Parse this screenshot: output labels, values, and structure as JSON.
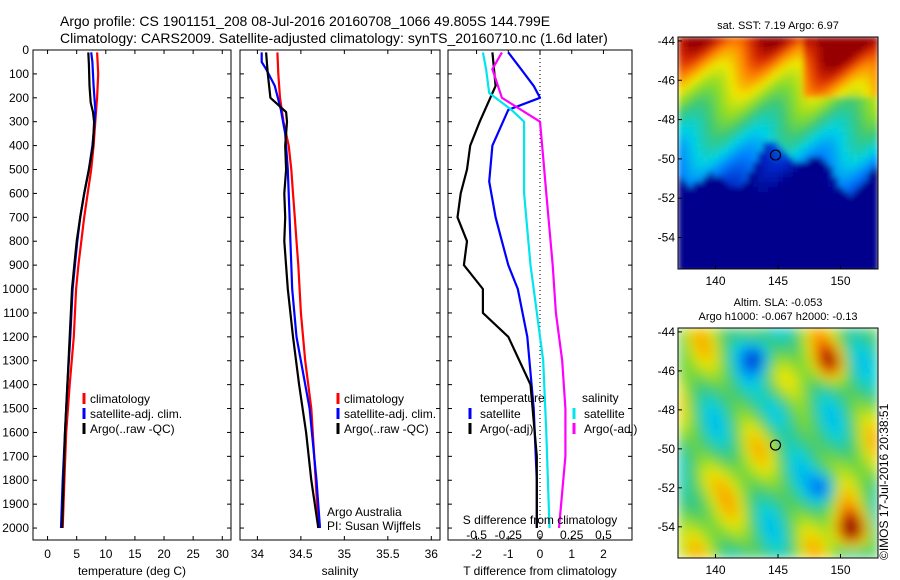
{
  "header": {
    "line1": "Argo profile: CS 1901151_208 08-Jul-2016 20160708_1066 49.805S 144.799E",
    "line2": "Climatology: CARS2009. Satellite-adjusted climatology: synTS_20160710.nc (1.6d later)"
  },
  "colors": {
    "climatology": "#ff0000",
    "satellite": "#0000ff",
    "argo": "#000000",
    "satellite_salinity": "#00e5ee",
    "argo_salinity": "#ff00ff"
  },
  "chart_data": [
    {
      "type": "line",
      "name": "temperature-profile",
      "xlabel": "temperature (deg C)",
      "xlim": [
        -2.5,
        31.5
      ],
      "xticks": [
        0,
        5,
        10,
        15,
        20,
        25,
        30
      ],
      "ylim": [
        0,
        2050
      ],
      "yticks": [
        0,
        100,
        200,
        300,
        400,
        500,
        600,
        700,
        800,
        900,
        1000,
        1100,
        1200,
        1300,
        1400,
        1500,
        1600,
        1700,
        1800,
        1900,
        2000
      ],
      "legend": {
        "position": "lower-center",
        "entries": [
          "climatology",
          "satellite-adj. clim.",
          "Argo(..raw -QC)"
        ]
      },
      "series": [
        {
          "name": "climatology",
          "color": "#ff0000",
          "x": [
            8.5,
            8.6,
            8.7,
            8.5,
            8.2,
            7.9,
            7.5,
            6.9,
            6.3,
            5.8,
            5.3,
            4.9,
            4.5,
            3.8,
            3.2,
            2.9,
            2.6
          ],
          "depth": [
            10,
            50,
            100,
            200,
            300,
            400,
            500,
            600,
            700,
            800,
            900,
            1000,
            1200,
            1400,
            1600,
            1800,
            2000
          ]
        },
        {
          "name": "satellite-adj. clim.",
          "color": "#0000ff",
          "x": [
            7.5,
            7.7,
            7.9,
            8.2,
            8.1,
            7.7,
            7.1,
            6.3,
            5.6,
            5.1,
            4.7,
            4.3,
            3.9,
            3.4,
            3.0,
            2.6,
            2.3
          ],
          "depth": [
            10,
            50,
            150,
            250,
            300,
            400,
            500,
            600,
            700,
            800,
            900,
            1000,
            1200,
            1400,
            1600,
            1800,
            2000
          ]
        },
        {
          "name": "Argo(..raw -QC)",
          "color": "#000000",
          "x": [
            7.0,
            7.1,
            7.2,
            7.4,
            7.8,
            8.0,
            7.8,
            7.1,
            6.3,
            5.6,
            5.0,
            4.6,
            4.2,
            3.8,
            3.4,
            3.0,
            2.5
          ],
          "depth": [
            10,
            60,
            150,
            220,
            260,
            300,
            400,
            500,
            600,
            700,
            800,
            900,
            1000,
            1200,
            1400,
            1600,
            2000
          ]
        }
      ]
    },
    {
      "type": "line",
      "name": "salinity-profile",
      "xlabel": "salinity",
      "xlim": [
        33.8,
        36.1
      ],
      "xticks": [
        34,
        34.5,
        35,
        35.5,
        36
      ],
      "ylim": [
        0,
        2050
      ],
      "legend": {
        "position": "lower-center",
        "entries": [
          "climatology",
          "satellite-adj. clim.",
          "Argo(..raw -QC)"
        ]
      },
      "annotation": [
        "Argo Australia",
        "PI: Susan Wijffels"
      ],
      "series": [
        {
          "name": "climatology",
          "color": "#ff0000",
          "x": [
            34.23,
            34.24,
            34.26,
            34.3,
            34.36,
            34.39,
            34.41,
            34.43,
            34.45,
            34.47,
            34.5,
            34.55,
            34.62,
            34.67,
            34.7
          ],
          "depth": [
            10,
            100,
            200,
            300,
            400,
            500,
            600,
            700,
            800,
            900,
            1100,
            1300,
            1500,
            1800,
            2000
          ]
        },
        {
          "name": "satellite-adj. clim.",
          "color": "#0000ff",
          "x": [
            34.05,
            34.05,
            34.1,
            34.2,
            34.27,
            34.32,
            34.35,
            34.36,
            34.37,
            34.38,
            34.4,
            34.45,
            34.6,
            34.68,
            34.72
          ],
          "depth": [
            10,
            50,
            80,
            150,
            250,
            350,
            500,
            600,
            700,
            800,
            1000,
            1200,
            1500,
            1800,
            2000
          ]
        },
        {
          "name": "Argo(..raw -QC)",
          "color": "#000000",
          "x": [
            34.1,
            34.12,
            34.15,
            34.33,
            34.34,
            34.32,
            34.33,
            34.31,
            34.32,
            34.31,
            34.35,
            34.41,
            34.48,
            34.56,
            34.62,
            34.7
          ],
          "depth": [
            10,
            100,
            200,
            260,
            300,
            400,
            500,
            600,
            700,
            800,
            1000,
            1200,
            1400,
            1600,
            1800,
            2000
          ]
        }
      ]
    },
    {
      "type": "line",
      "name": "difference-profile",
      "xlabel": "T difference from climatology",
      "xlabel_top": "S difference from climatology",
      "xlim": [
        -2.9,
        2.9
      ],
      "xticks": [
        -2,
        -1,
        0,
        1,
        2
      ],
      "sticks": [
        -0.5,
        -0.25,
        0,
        0.25,
        0.5
      ],
      "ylim": [
        0,
        2050
      ],
      "legend": {
        "position": "lower",
        "headers": [
          "temperature",
          "salinity"
        ],
        "entries": [
          "satellite",
          "Argo(-adj)",
          "satellite",
          "Argo(-adj)"
        ]
      },
      "series": [
        {
          "name": "T satellite",
          "color": "#0000ff",
          "x": [
            -1.0,
            -0.6,
            -0.2,
            0.0,
            -1.0,
            -1.5,
            -1.6,
            -1.4,
            -1.2,
            -1.0,
            -0.7,
            -0.4,
            -0.2,
            -0.1,
            -0.1
          ],
          "depth": [
            10,
            80,
            150,
            200,
            250,
            400,
            550,
            700,
            800,
            900,
            1000,
            1200,
            1500,
            1800,
            2000
          ]
        },
        {
          "name": "T Argo(-adj)",
          "color": "#000000",
          "x": [
            -1.5,
            -1.4,
            -1.9,
            -2.2,
            -2.3,
            -2.5,
            -2.6,
            -2.3,
            -2.4,
            -1.8,
            -1.8,
            -1.0,
            -0.3,
            -0.1,
            -0.1
          ],
          "depth": [
            10,
            150,
            300,
            400,
            500,
            600,
            700,
            800,
            900,
            1000,
            1100,
            1200,
            1400,
            1700,
            2000
          ]
        },
        {
          "name": "S satellite",
          "color": "#00e5ee",
          "x": [
            -1.8,
            -1.7,
            -1.6,
            -0.9,
            -0.5,
            -0.5,
            -0.5,
            -0.4,
            -0.3,
            -0.2,
            0.1,
            0.2,
            0.3
          ],
          "depth": [
            10,
            80,
            180,
            250,
            300,
            450,
            600,
            750,
            900,
            1000,
            1300,
            1600,
            2000
          ]
        },
        {
          "name": "S Argo(-adj)",
          "color": "#ff00ff",
          "x": [
            -1.2,
            -1.5,
            -1.2,
            0.0,
            0.1,
            0.2,
            0.3,
            0.4,
            0.5,
            0.7,
            0.8,
            0.8,
            0.6
          ],
          "depth": [
            10,
            80,
            200,
            300,
            450,
            600,
            750,
            900,
            1100,
            1300,
            1500,
            1700,
            2000
          ]
        }
      ]
    },
    {
      "type": "heatmap",
      "name": "sst-map",
      "title": "sat. SST: 7.19 Argo: 6.97",
      "xticks": [
        140,
        145,
        150
      ],
      "yticks": [
        -44,
        -46,
        -48,
        -50,
        -52,
        -54
      ],
      "xlim": [
        137,
        153
      ],
      "ylim": [
        -55.6,
        -43.8
      ],
      "marker": {
        "lon": 144.799,
        "lat": -49.805
      }
    },
    {
      "type": "heatmap",
      "name": "sla-map",
      "title": [
        "Altim. SLA: -0.053",
        "Argo h1000: -0.067 h2000: -0.13"
      ],
      "xticks": [
        140,
        145,
        150
      ],
      "yticks": [
        -44,
        -46,
        -48,
        -50,
        -52,
        -54
      ],
      "xlim": [
        137,
        153
      ],
      "ylim": [
        -55.6,
        -43.8
      ],
      "marker": {
        "lon": 144.799,
        "lat": -49.805
      }
    }
  ],
  "stamp": "©IMOS 17-Jul-2016 20:38:51"
}
